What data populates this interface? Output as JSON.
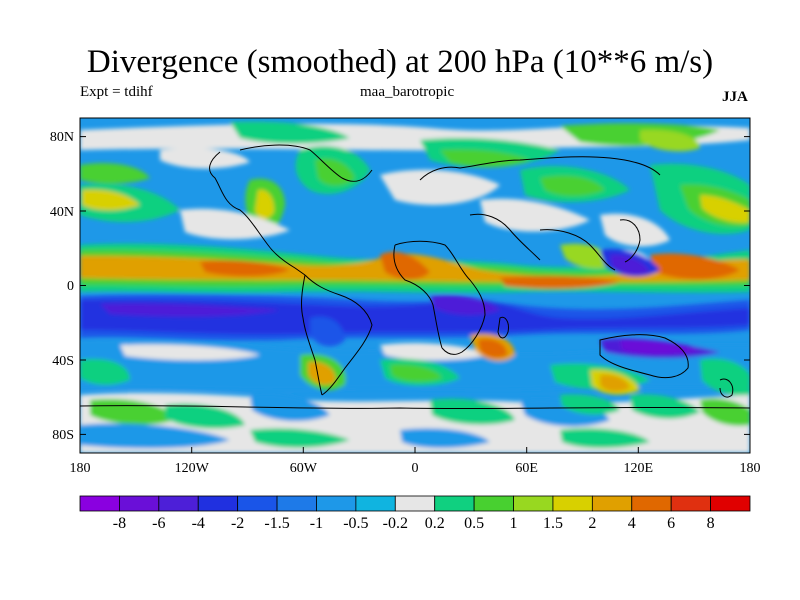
{
  "title": "Divergence (smoothed) at 200 hPa (10**6 m/s)",
  "left_subtitle": "Expt = tdihf",
  "center_subtitle": "maa_barotropic",
  "right_subtitle": "JJA",
  "map": {
    "projection": "cylindrical equidistant",
    "lon_range": [
      -180,
      180
    ],
    "lat_range": [
      -90,
      90
    ],
    "lon_tick_labels": [
      "180",
      "120W",
      "60W",
      "0",
      "60E",
      "120E",
      "180"
    ],
    "lat_tick_labels": [
      "80N",
      "40N",
      "0",
      "40S",
      "80S"
    ]
  },
  "colorbar": {
    "labels": [
      "-8",
      "-6",
      "-4",
      "-2",
      "-1.5",
      "-1",
      "-0.5",
      "-0.2",
      "0.2",
      "0.5",
      "1",
      "1.5",
      "2",
      "4",
      "6",
      "8"
    ],
    "colors": [
      "#8a00e0",
      "#6a0fd8",
      "#4d1fd8",
      "#2030e0",
      "#1a55e8",
      "#1e7ae8",
      "#1e98e8",
      "#10b4e0",
      "#e6e6e6",
      "#10d080",
      "#48d030",
      "#98d820",
      "#d8d000",
      "#e0a000",
      "#e06800",
      "#e03010",
      "#e00000"
    ]
  },
  "chart_data": {
    "type": "heatmap",
    "title": "Divergence (smoothed) at 200 hPa (10**6 m/s)",
    "variable": "divergence (smoothed)",
    "level": "200 hPa",
    "units": "10**6 m/s",
    "season": "JJA",
    "contour_levels": [
      -8,
      -6,
      -4,
      -2,
      -1.5,
      -1,
      -0.5,
      -0.2,
      0.2,
      0.5,
      1,
      1.5,
      2,
      4,
      6,
      8
    ],
    "xlabel": "",
    "ylabel": ""
  }
}
